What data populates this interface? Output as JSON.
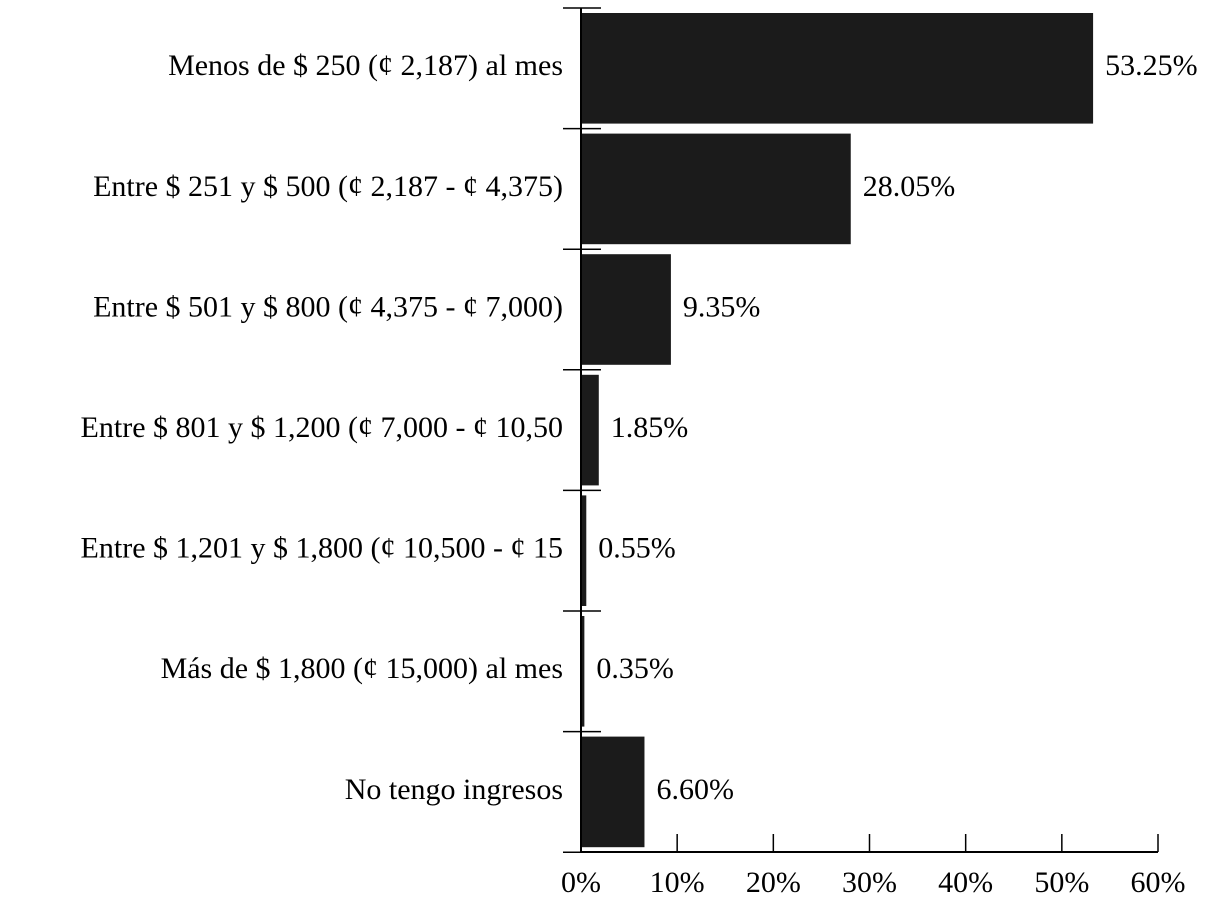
{
  "colors": {
    "bar": "#1b1b1b",
    "axis": "#000000",
    "background": "#ffffff"
  },
  "chart_data": {
    "type": "bar",
    "orientation": "horizontal",
    "title": "",
    "xlabel": "",
    "ylabel": "",
    "categories": [
      "Menos de $ 250 (¢ 2,187) al mes",
      "Entre $ 251 y $ 500 (¢ 2,187 - ¢ 4,375)",
      "Entre $ 501 y $ 800 (¢ 4,375 - ¢ 7,000)",
      "Entre $ 801 y $ 1,200 (¢ 7,000 - ¢ 10,50",
      "Entre $ 1,201 y $ 1,800 (¢ 10,500 - ¢ 15",
      "Más de $ 1,800 (¢ 15,000) al mes",
      "No tengo ingresos"
    ],
    "values": [
      53.25,
      28.05,
      9.35,
      1.85,
      0.55,
      0.35,
      6.6
    ],
    "value_labels": [
      "53.25%",
      "28.05%",
      "9.35%",
      "1.85%",
      "0.55%",
      "0.35%",
      "6.60%"
    ],
    "xlim": [
      0,
      60
    ],
    "xticks": [
      0,
      10,
      20,
      30,
      40,
      50,
      60
    ],
    "xtick_labels": [
      "0%",
      "10%",
      "20%",
      "30%",
      "40%",
      "50%",
      "60%"
    ],
    "grid": false,
    "legend": "none"
  }
}
